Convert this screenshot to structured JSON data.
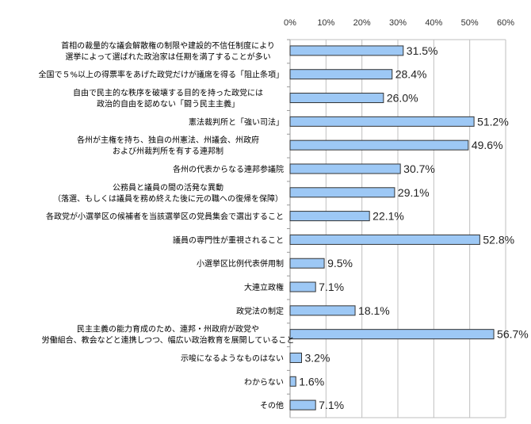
{
  "chart_data": {
    "type": "bar",
    "orientation": "horizontal",
    "title": "",
    "xlabel": "",
    "ylabel": "",
    "xlim": [
      0,
      60
    ],
    "x_ticks": [
      "0%",
      "10%",
      "20%",
      "30%",
      "40%",
      "50%",
      "60%"
    ],
    "x_axis_position": "top",
    "grid": true,
    "bar_color": "#9dc8f5",
    "bar_border_color": "#333333",
    "categories": [
      [
        "首相の裁量的な議会解散権の制限や建設的不信任制度により",
        "選挙によって選ばれた政治家は任期を満了することが多い"
      ],
      [
        "全国で５%以上の得票率をあげた政党だけが議席を得る「阻止条項」"
      ],
      [
        "自由で民主的な秩序を破壊する目的を持った政党には",
        "政治的自由を認めない「闘う民主主義」"
      ],
      [
        "憲法裁判所と「強い司法」"
      ],
      [
        "各州が主権を持ち、独自の州憲法、州議会、州政府",
        "および州裁判所を有する連邦制"
      ],
      [
        "各州の代表からなる連邦参議院"
      ],
      [
        "公務員と議員の間の活発な異動",
        "（落選、もしくは議員を務め終えた後に元の職への復帰を保障）"
      ],
      [
        "各政党が小選挙区の候補者を当該選挙区の党員集会で選出すること"
      ],
      [
        "議員の専門性が重視されること"
      ],
      [
        "小選挙区比例代表併用制"
      ],
      [
        "大連立政権"
      ],
      [
        "政党法の制定"
      ],
      [
        "民主主義の能力育成のため、連邦・州政府が政党や",
        "労働組合、教会などと連携しつつ、幅広い政治教育を展開していること"
      ],
      [
        "示唆になるようなものはない"
      ],
      [
        "わからない"
      ],
      [
        "その他"
      ]
    ],
    "values": [
      31.5,
      28.4,
      26.0,
      51.2,
      49.6,
      30.7,
      29.1,
      22.1,
      52.8,
      9.5,
      7.1,
      18.1,
      56.7,
      3.2,
      1.6,
      7.1
    ],
    "value_labels": [
      "31.5%",
      "28.4%",
      "26.0%",
      "51.2%",
      "49.6%",
      "30.7%",
      "29.1%",
      "22.1%",
      "52.8%",
      "9.5%",
      "7.1%",
      "18.1%",
      "56.7%",
      "3.2%",
      "1.6%",
      "7.1%"
    ]
  }
}
